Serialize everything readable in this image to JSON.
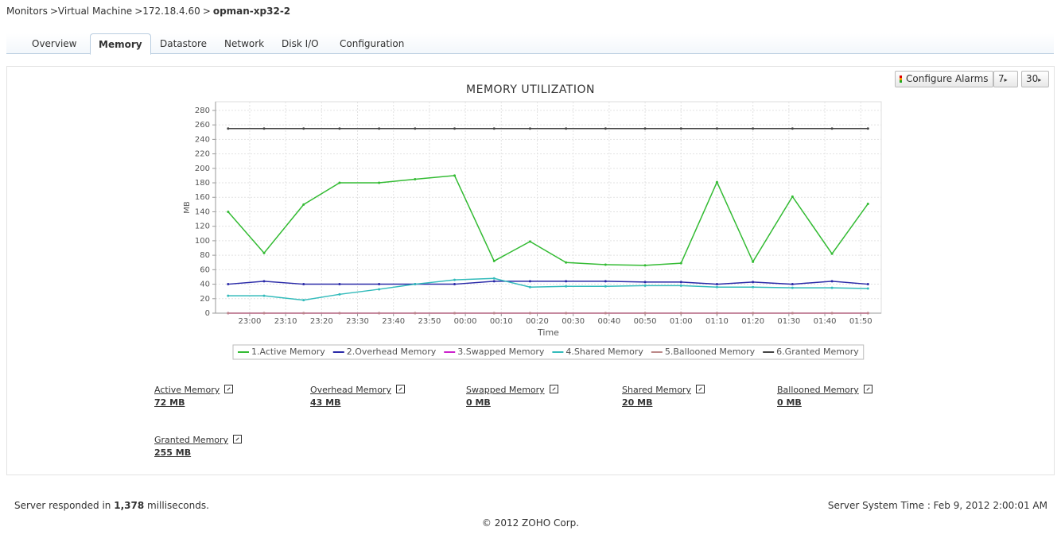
{
  "breadcrumb": {
    "path": [
      "Monitors",
      ">Virtual Machine",
      ">172.18.4.60",
      ">"
    ],
    "current": "opman-xp32-2"
  },
  "tabs": [
    "Overview",
    "Memory",
    "Datastore",
    "Network",
    "Disk I/O",
    "Configuration"
  ],
  "active_tab": 1,
  "buttons": [
    "Configure Alarms",
    "7",
    "30"
  ],
  "chart_data": {
    "type": "line",
    "title": "MEMORY UTILIZATION",
    "y_label": "MB",
    "x_label": "Time",
    "x": [
      -6,
      4,
      15,
      25,
      36,
      46,
      57,
      68,
      78,
      88,
      99,
      110,
      120,
      130,
      140,
      151,
      162,
      172
    ],
    "xlim": [
      -9.5,
      175.7
    ],
    "xticks": [
      {
        "value": 0,
        "label": "23:00"
      },
      {
        "value": 10,
        "label": "23:10"
      },
      {
        "value": 20,
        "label": "23:20"
      },
      {
        "value": 30,
        "label": "23:30"
      },
      {
        "value": 40,
        "label": "23:40"
      },
      {
        "value": 50,
        "label": "23:50"
      },
      {
        "value": 60,
        "label": "00:00"
      },
      {
        "value": 70,
        "label": "00:10"
      },
      {
        "value": 80,
        "label": "00:20"
      },
      {
        "value": 90,
        "label": "00:30"
      },
      {
        "value": 100,
        "label": "00:40"
      },
      {
        "value": 110,
        "label": "00:50"
      },
      {
        "value": 120,
        "label": "01:00"
      },
      {
        "value": 130,
        "label": "01:10"
      },
      {
        "value": 140,
        "label": "01:20"
      },
      {
        "value": 150,
        "label": "01:30"
      },
      {
        "value": 160,
        "label": "01:40"
      },
      {
        "value": 170,
        "label": "01:50"
      }
    ],
    "ylim": [
      0,
      292
    ],
    "yticks": [
      0,
      20,
      40,
      60,
      80,
      100,
      120,
      140,
      160,
      180,
      200,
      220,
      240,
      260,
      280
    ],
    "grid": true,
    "series": [
      {
        "name": "1.Active Memory",
        "color": "#33bb33",
        "values": [
          140,
          83,
          150,
          180,
          180,
          185,
          190,
          72,
          99,
          70,
          67,
          66,
          69,
          181,
          71,
          161,
          82,
          151
        ]
      },
      {
        "name": "2.Overhead Memory",
        "color": "#2a2aa8",
        "values": [
          40,
          44,
          40,
          40,
          40,
          40,
          40,
          44,
          44,
          44,
          44,
          43,
          43,
          40,
          43,
          40,
          44,
          40
        ]
      },
      {
        "name": "3.Swapped Memory",
        "color": "#cc22cc",
        "values": [
          0,
          0,
          0,
          0,
          0,
          0,
          0,
          0,
          0,
          0,
          0,
          0,
          0,
          0,
          0,
          0,
          0,
          0
        ]
      },
      {
        "name": "4.Shared Memory",
        "color": "#33bbbb",
        "values": [
          24,
          24,
          18,
          26,
          33,
          40,
          46,
          48,
          36,
          37,
          37,
          38,
          38,
          36,
          36,
          35,
          35,
          34
        ]
      },
      {
        "name": "5.Ballooned Memory",
        "color": "#bb8888",
        "values": [
          0,
          0,
          0,
          0,
          0,
          0,
          0,
          0,
          0,
          0,
          0,
          0,
          0,
          0,
          0,
          0,
          0,
          0
        ]
      },
      {
        "name": "6.Granted Memory",
        "color": "#444444",
        "values": [
          255,
          255,
          255,
          255,
          255,
          255,
          255,
          255,
          255,
          255,
          255,
          255,
          255,
          255,
          255,
          255,
          255,
          255
        ]
      }
    ]
  },
  "summary": [
    {
      "label": "Active Memory",
      "value": "72 MB"
    },
    {
      "label": "Overhead Memory",
      "value": "43 MB"
    },
    {
      "label": "Swapped Memory",
      "value": "0 MB"
    },
    {
      "label": "Shared Memory",
      "value": "20 MB"
    },
    {
      "label": "Ballooned Memory",
      "value": "0 MB"
    },
    {
      "label": "Granted Memory",
      "value": "255 MB"
    }
  ],
  "footer": {
    "response": [
      "Server responded in",
      "1,378",
      "milliseconds."
    ],
    "server_time": "Server System Time : Feb 9, 2012 2:00:01 AM",
    "copyright": "© 2012 ZOHO Corp."
  }
}
